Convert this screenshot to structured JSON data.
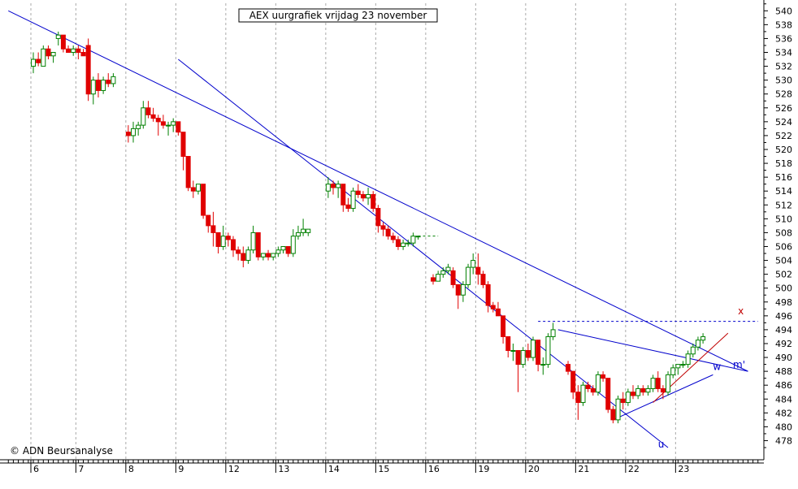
{
  "chart_data": {
    "type": "candlestick",
    "title": "AEX uurgrafiek vrijdag 23 november",
    "copyright": "© ADN Beursanalyse",
    "y_axis": {
      "side": "right",
      "range": [
        476,
        541
      ],
      "ticks": [
        478,
        480,
        482,
        484,
        486,
        488,
        490,
        492,
        494,
        496,
        498,
        500,
        502,
        504,
        506,
        508,
        510,
        512,
        514,
        516,
        518,
        520,
        522,
        524,
        526,
        528,
        530,
        532,
        534,
        536,
        538,
        540
      ]
    },
    "x_axis": {
      "days": [
        {
          "label": "6",
          "index": 0
        },
        {
          "label": "7",
          "index": 9
        },
        {
          "label": "8",
          "index": 19
        },
        {
          "label": "9",
          "index": 29
        },
        {
          "label": "12",
          "index": 39
        },
        {
          "label": "13",
          "index": 49
        },
        {
          "label": "14",
          "index": 59
        },
        {
          "label": "15",
          "index": 69
        },
        {
          "label": "16",
          "index": 79
        },
        {
          "label": "19",
          "index": 89
        },
        {
          "label": "20",
          "index": 99
        },
        {
          "label": "21",
          "index": 109
        },
        {
          "label": "22",
          "index": 119
        },
        {
          "label": "23",
          "index": 129
        }
      ],
      "index_range": [
        -5,
        145
      ]
    },
    "grid": {
      "vertical_dotted": true,
      "horizontal": false
    },
    "colors": {
      "up": "#008000",
      "down": "#e00000",
      "trendline": "#0000cc",
      "trendline_red": "#c00000"
    },
    "candles": [
      [
        0,
        532,
        534,
        531,
        533
      ],
      [
        1,
        533,
        534,
        532,
        532.5
      ],
      [
        2,
        532,
        535,
        532,
        534.5
      ],
      [
        3,
        534.5,
        535,
        533,
        533.5
      ],
      [
        4,
        533.5,
        534,
        532.5,
        534
      ],
      [
        5,
        536,
        537,
        535,
        536.5
      ],
      [
        6,
        536.5,
        536.5,
        534,
        534.5
      ],
      [
        7,
        534.5,
        535,
        534,
        534
      ],
      [
        8,
        534,
        535,
        533.5,
        534.5
      ],
      [
        9,
        534.5,
        535,
        533,
        534
      ],
      [
        10,
        534,
        534.5,
        533.5,
        533.5
      ],
      [
        11,
        535,
        536,
        527,
        528
      ],
      [
        12,
        528,
        530.5,
        526.5,
        530
      ],
      [
        13,
        530,
        531,
        527.5,
        528.5
      ],
      [
        14,
        528.5,
        530.5,
        528,
        530
      ],
      [
        15,
        530,
        531,
        529,
        529.5
      ],
      [
        16,
        529.5,
        531,
        529,
        530.5
      ],
      [
        19,
        522.5,
        523.5,
        521,
        522
      ],
      [
        20,
        522,
        524,
        521,
        523
      ],
      [
        21,
        523,
        524,
        522,
        523.5
      ],
      [
        22,
        523.5,
        527,
        523,
        526
      ],
      [
        23,
        526,
        527,
        524.5,
        525
      ],
      [
        24,
        525,
        526,
        524,
        524.5
      ],
      [
        25,
        524.5,
        525,
        522,
        524
      ],
      [
        26,
        524,
        525,
        523,
        523.5
      ],
      [
        27,
        523.5,
        524,
        522,
        523.5
      ],
      [
        28,
        523.5,
        524.5,
        522.5,
        524
      ],
      [
        29,
        524,
        524,
        522,
        522.5
      ],
      [
        30,
        522.5,
        522.5,
        517,
        519
      ],
      [
        31,
        519,
        519,
        514,
        514.5
      ],
      [
        32,
        514.5,
        515.5,
        513,
        514
      ],
      [
        33,
        514,
        515,
        513.5,
        515
      ],
      [
        34,
        515,
        515,
        510,
        510.5
      ],
      [
        35,
        510.5,
        510.5,
        508,
        509
      ],
      [
        36,
        509,
        511,
        506,
        508
      ],
      [
        37,
        508,
        508,
        505,
        506
      ],
      [
        38,
        506,
        509,
        505.5,
        507.5
      ],
      [
        39,
        507.5,
        508,
        506,
        507
      ],
      [
        40,
        507,
        507.5,
        504.5,
        505.5
      ],
      [
        41,
        505.5,
        506,
        504,
        505
      ],
      [
        42,
        505,
        506,
        503,
        504
      ],
      [
        43,
        504,
        506,
        503.5,
        505.5
      ],
      [
        44,
        505.5,
        509,
        505,
        508
      ],
      [
        45,
        508,
        508,
        504,
        504.5
      ],
      [
        46,
        504.5,
        505,
        504,
        505
      ],
      [
        47,
        505,
        505.5,
        504,
        504.5
      ],
      [
        48,
        504.5,
        505,
        504,
        505
      ],
      [
        49,
        505,
        506,
        504.5,
        505.5
      ],
      [
        50,
        505.5,
        506,
        505,
        506
      ],
      [
        51,
        506,
        506,
        504.5,
        505
      ],
      [
        52,
        505,
        508.5,
        504.5,
        507.5
      ],
      [
        53,
        507.5,
        509,
        507,
        508
      ],
      [
        54,
        508,
        510,
        507.5,
        508.5
      ],
      [
        55,
        508,
        508.5,
        507.5,
        508.5
      ],
      [
        59,
        514,
        516,
        513,
        515
      ],
      [
        60,
        515,
        515.5,
        513.5,
        514.5
      ],
      [
        61,
        514.5,
        515.5,
        513,
        515
      ],
      [
        62,
        515,
        515,
        511,
        512
      ],
      [
        63,
        512,
        513,
        511,
        511.5
      ],
      [
        64,
        511.5,
        514.5,
        511,
        514
      ],
      [
        65,
        514,
        515,
        513,
        513.5
      ],
      [
        66,
        513.5,
        514,
        512.5,
        513
      ],
      [
        67,
        513,
        514.5,
        512,
        513.5
      ],
      [
        68,
        513.5,
        514,
        511,
        511.5
      ],
      [
        69,
        511.5,
        512,
        508,
        509
      ],
      [
        70,
        509,
        509.5,
        507.5,
        508.5
      ],
      [
        71,
        508.5,
        509,
        507,
        507.5
      ],
      [
        72,
        507.5,
        508,
        506.5,
        507
      ],
      [
        73,
        507,
        507.5,
        505.5,
        506
      ],
      [
        74,
        506,
        507,
        505.5,
        506.5
      ],
      [
        75,
        506.5,
        507,
        506,
        506.5
      ],
      [
        76,
        506.5,
        508,
        506,
        507.5
      ],
      [
        77,
        507.5,
        507.5,
        507,
        507.5
      ],
      [
        80,
        501.5,
        502,
        500.5,
        501
      ],
      [
        81,
        501,
        502.5,
        501,
        502
      ],
      [
        82,
        502,
        503,
        501.5,
        502.5
      ],
      [
        83,
        502.5,
        503.5,
        502,
        503
      ],
      [
        84,
        502.5,
        503,
        500,
        500.5
      ],
      [
        85,
        500.5,
        500.5,
        497,
        499
      ],
      [
        86,
        499,
        501,
        498,
        500.5
      ],
      [
        87,
        500.5,
        503.5,
        500,
        503
      ],
      [
        88,
        503,
        505,
        502,
        504
      ],
      [
        89,
        503,
        505,
        500.5,
        502
      ],
      [
        90,
        502,
        502.5,
        500,
        500.5
      ],
      [
        91,
        500.5,
        501,
        496.5,
        497.5
      ],
      [
        92,
        497.5,
        498,
        496.5,
        497
      ],
      [
        93,
        497,
        498,
        496,
        496
      ],
      [
        94,
        496,
        496,
        492,
        493
      ],
      [
        95,
        493,
        493,
        490,
        491
      ],
      [
        96,
        491,
        492,
        489.5,
        491
      ],
      [
        97,
        491,
        491,
        485,
        489
      ],
      [
        98,
        489,
        491.5,
        488.5,
        491
      ],
      [
        99,
        491,
        492,
        489.5,
        490
      ],
      [
        100,
        490,
        493,
        489.5,
        492.5
      ],
      [
        101,
        492.5,
        492.5,
        488,
        489
      ],
      [
        102,
        489,
        490,
        487.5,
        489
      ],
      [
        103,
        489,
        493.5,
        488.5,
        493
      ],
      [
        104,
        493,
        495,
        492.5,
        494
      ],
      [
        107,
        489,
        489.5,
        487.5,
        488
      ],
      [
        108,
        488,
        488,
        484,
        485
      ],
      [
        109,
        485,
        486,
        481,
        483.5
      ],
      [
        110,
        483.5,
        486.5,
        483,
        486
      ],
      [
        111,
        486,
        486.5,
        485,
        485.5
      ],
      [
        112,
        485.5,
        486,
        484.5,
        485
      ],
      [
        113,
        485,
        488,
        484.5,
        487.5
      ],
      [
        114,
        487.5,
        488,
        486.5,
        487
      ],
      [
        115,
        487,
        487,
        482,
        482.5
      ],
      [
        116,
        482.5,
        483,
        480.5,
        481
      ],
      [
        117,
        481,
        484.5,
        480.5,
        484
      ],
      [
        118,
        484,
        485,
        482.5,
        483.5
      ],
      [
        119,
        483.5,
        485.5,
        483,
        485
      ],
      [
        120,
        485,
        486,
        484,
        484.5
      ],
      [
        121,
        484.5,
        486,
        484,
        485.5
      ],
      [
        122,
        485.5,
        486,
        484.5,
        485
      ],
      [
        123,
        485,
        486,
        484.5,
        485.5
      ],
      [
        124,
        485.5,
        487.5,
        485,
        487
      ],
      [
        125,
        487,
        488,
        485,
        485.5
      ],
      [
        126,
        485.5,
        486,
        484,
        485
      ],
      [
        127,
        485,
        488,
        484.5,
        487.5
      ],
      [
        128,
        487.5,
        489,
        487,
        488.5
      ],
      [
        129,
        488.5,
        489,
        487.5,
        489
      ],
      [
        130,
        489,
        489.5,
        488.5,
        489
      ],
      [
        131,
        489,
        491,
        488.5,
        490.5
      ],
      [
        132,
        490.5,
        492,
        490,
        491.5
      ],
      [
        133,
        491.5,
        493,
        491,
        492.5
      ],
      [
        134,
        492.5,
        493.5,
        492,
        493
      ]
    ],
    "lines": [
      {
        "name": "upper-channel",
        "color": "#0000cc",
        "from": [
          -5,
          540
        ],
        "to": [
          143,
          488
        ]
      },
      {
        "name": "lower-channel",
        "color": "#0000cc",
        "from": [
          29,
          533
        ],
        "to": [
          127,
          477
        ]
      },
      {
        "name": "m-prime",
        "color": "#0000cc",
        "from": [
          105,
          494
        ],
        "to": [
          143,
          488
        ]
      },
      {
        "name": "w-support",
        "color": "#0000cc",
        "from": [
          116,
          481
        ],
        "to": [
          136,
          487.5
        ]
      },
      {
        "name": "red-rising",
        "color": "#c00000",
        "from": [
          124,
          483.5
        ],
        "to": [
          139,
          493.5
        ]
      }
    ],
    "dashed_lines": [
      {
        "name": "resistance",
        "color": "#0000cc",
        "y": 495.2,
        "from": 101,
        "to": 145
      },
      {
        "name": "last-close-guide",
        "color": "#008000",
        "y": 507.5,
        "from": 77,
        "to": 81
      }
    ],
    "annotations": [
      {
        "text": "x",
        "x": 141,
        "y": 496.2,
        "color": "#c00000"
      },
      {
        "text": "m'",
        "x": 140,
        "y": 488.5,
        "color": "#0000cc"
      },
      {
        "text": "w",
        "x": 136,
        "y": 488.2,
        "color": "#0000cc"
      },
      {
        "text": "u",
        "x": 125,
        "y": 477,
        "color": "#0000cc"
      }
    ]
  }
}
